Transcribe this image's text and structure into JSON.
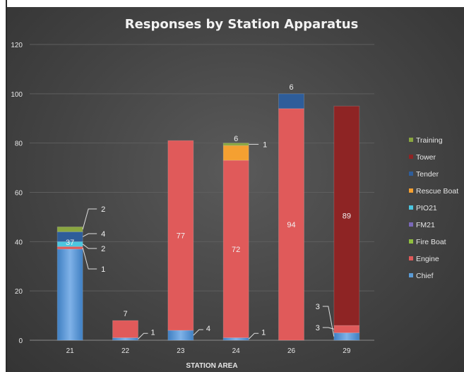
{
  "chart_data": {
    "type": "bar",
    "stacked": true,
    "title": "Responses by Station Apparatus",
    "xlabel": "STATION AREA",
    "ylabel": "",
    "ylim": [
      0,
      120
    ],
    "yticks": [
      0,
      20,
      40,
      60,
      80,
      100,
      120
    ],
    "categories": [
      "21",
      "22",
      "23",
      "24",
      "26",
      "29"
    ],
    "series": [
      {
        "name": "Chief",
        "color": "#5b9bd5",
        "values": [
          37,
          1,
          4,
          1,
          0,
          3
        ]
      },
      {
        "name": "Engine",
        "color": "#e05a5a",
        "values": [
          1,
          7,
          77,
          72,
          94,
          3
        ]
      },
      {
        "name": "Fire Boat",
        "color": "#8fbf3f",
        "values": [
          0,
          0,
          0,
          0,
          0,
          0
        ]
      },
      {
        "name": "FM21",
        "color": "#7a68b8",
        "values": [
          0,
          0,
          0,
          0,
          0,
          0
        ]
      },
      {
        "name": "PIO21",
        "color": "#4cc6e0",
        "values": [
          2,
          0,
          0,
          0,
          0,
          0
        ]
      },
      {
        "name": "Rescue Boat",
        "color": "#f5a031",
        "values": [
          0,
          0,
          0,
          6,
          0,
          0
        ]
      },
      {
        "name": "Tender",
        "color": "#2e5d9a",
        "values": [
          4,
          0,
          0,
          0,
          6,
          0
        ]
      },
      {
        "name": "Tower",
        "color": "#8e2424",
        "values": [
          0,
          0,
          0,
          0,
          0,
          89
        ]
      },
      {
        "name": "Training",
        "color": "#8aa640",
        "values": [
          2,
          0,
          0,
          1,
          0,
          0
        ]
      }
    ],
    "legend_position": "right",
    "grid": true
  }
}
